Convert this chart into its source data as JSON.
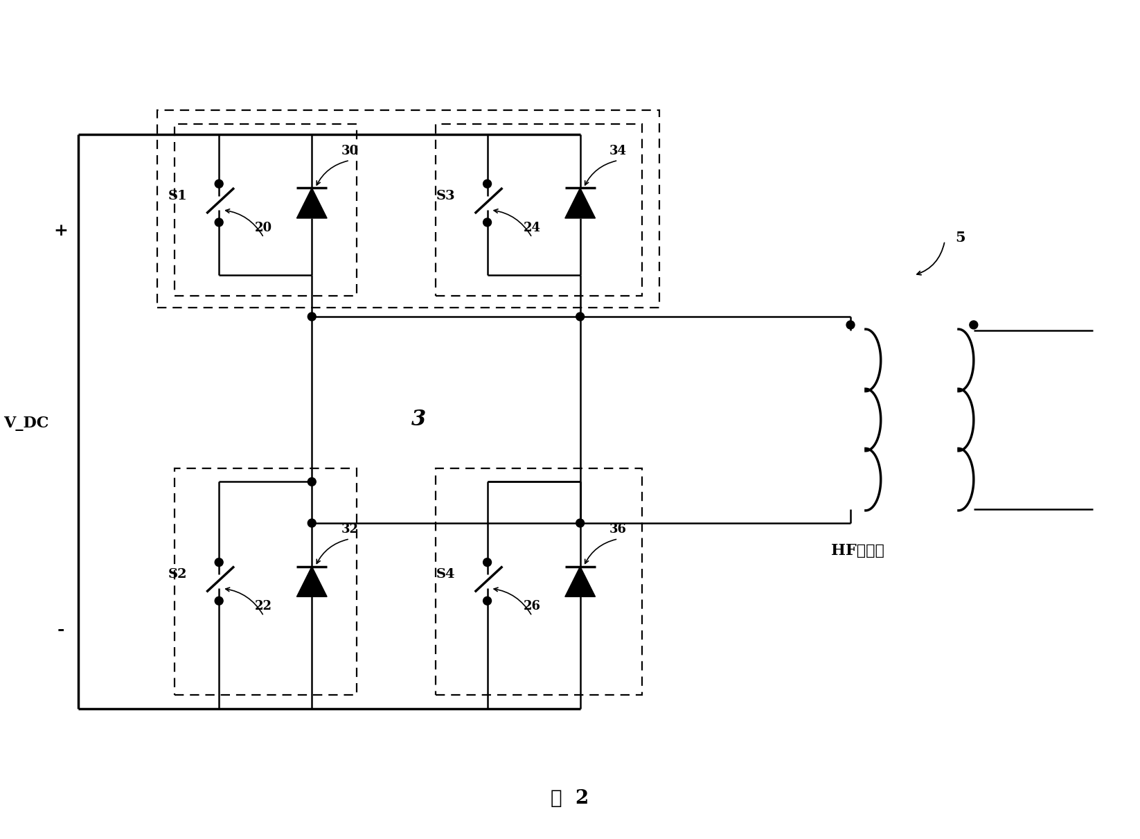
{
  "title": "图  2",
  "bg_color": "#ffffff",
  "line_color": "#000000",
  "lw": 1.8,
  "lw_thick": 2.5,
  "dot_r": 0.06,
  "switch_labels": [
    "S1",
    "S2",
    "S3",
    "S4"
  ],
  "switch_nums": [
    "20",
    "22",
    "24",
    "26"
  ],
  "diode_nums": [
    "30",
    "32",
    "34",
    "36"
  ],
  "label_vdc": "V_DC",
  "label_plus": "+",
  "label_minus": "-",
  "label_3": "3",
  "label_5": "5",
  "label_hf": "HF变压器",
  "fig_width": 16.46,
  "fig_height": 12.11,
  "xlim": [
    0,
    16.46
  ],
  "ylim": [
    0,
    12.11
  ]
}
